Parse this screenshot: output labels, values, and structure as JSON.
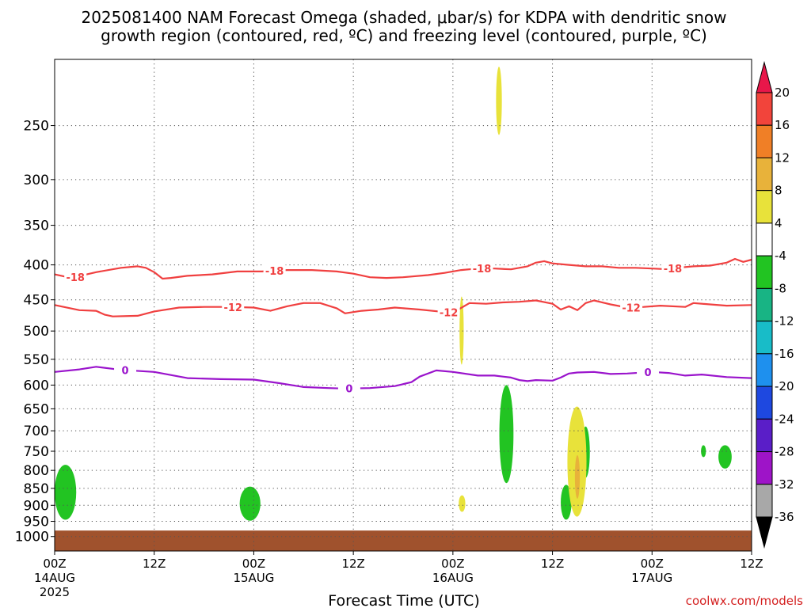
{
  "chart_data": {
    "type": "heatmap",
    "title_line1": "2025081400 NAM Forecast Omega (shaded, μbar/s) for KDPA with dendritic snow",
    "title_line2": "growth region (contoured, red, ºC) and freezing level (contoured, purple, ºC)",
    "xlabel": "Forecast Time (UTC)",
    "watermark": "coolwx.com/models",
    "x_ticks": [
      {
        "hour": 0,
        "label": "00Z",
        "date": "14AUG",
        "year": "2025"
      },
      {
        "hour": 12,
        "label": "12Z"
      },
      {
        "hour": 24,
        "label": "00Z",
        "date": "15AUG"
      },
      {
        "hour": 36,
        "label": "12Z"
      },
      {
        "hour": 48,
        "label": "00Z",
        "date": "16AUG"
      },
      {
        "hour": 60,
        "label": "12Z"
      },
      {
        "hour": 72,
        "label": "00Z",
        "date": "17AUG"
      },
      {
        "hour": 84,
        "label": "12Z"
      }
    ],
    "x_range_hours": [
      0,
      84
    ],
    "y_range_hpa": [
      1050,
      200
    ],
    "y_scale": "log-pressure (inverted)",
    "y_ticks": [
      250,
      300,
      350,
      400,
      450,
      500,
      550,
      600,
      650,
      700,
      750,
      800,
      850,
      900,
      950,
      1000
    ],
    "grid": "dotted",
    "colorbar": {
      "labels": [
        "20",
        "16",
        "12",
        "8",
        "4",
        "-4",
        "-8",
        "-12",
        "-16",
        "-20",
        "-24",
        "-28",
        "-32",
        "-36"
      ],
      "colors": [
        "#e8174a",
        "#f2443b",
        "#f07f26",
        "#e8b23a",
        "#e8e23a",
        "#ffffff",
        "#22c422",
        "#18b484",
        "#18bcc8",
        "#1e90ee",
        "#1e48e0",
        "#5a1ec8",
        "#9e14c8",
        "#a8a8a8",
        "#000000"
      ]
    },
    "series": [
      {
        "name": "-18",
        "color": "#f04040",
        "label_hours": [
          2.5,
          26.5,
          51.5,
          74.5
        ],
        "points": [
          [
            0,
            413
          ],
          [
            2,
            418
          ],
          [
            5,
            410
          ],
          [
            8,
            404
          ],
          [
            10,
            402
          ],
          [
            11,
            404
          ],
          [
            12,
            410
          ],
          [
            13,
            419
          ],
          [
            14,
            418
          ],
          [
            16,
            415
          ],
          [
            19,
            413
          ],
          [
            22,
            409
          ],
          [
            25,
            409
          ],
          [
            28,
            407
          ],
          [
            31,
            407
          ],
          [
            34,
            409
          ],
          [
            36,
            412
          ],
          [
            38,
            417
          ],
          [
            40,
            418
          ],
          [
            42,
            417
          ],
          [
            45,
            414
          ],
          [
            47,
            411
          ],
          [
            49,
            407
          ],
          [
            51,
            405
          ],
          [
            53,
            405
          ],
          [
            55,
            406
          ],
          [
            57,
            402
          ],
          [
            58,
            397
          ],
          [
            59,
            395
          ],
          [
            60,
            398
          ],
          [
            62,
            400
          ],
          [
            64,
            402
          ],
          [
            66,
            402
          ],
          [
            68,
            404
          ],
          [
            70,
            404
          ],
          [
            72,
            405
          ],
          [
            74,
            406
          ],
          [
            75,
            404
          ],
          [
            77,
            402
          ],
          [
            79,
            401
          ],
          [
            81,
            397
          ],
          [
            82,
            392
          ],
          [
            83,
            396
          ],
          [
            84,
            393
          ]
        ]
      },
      {
        "name": "-12",
        "color": "#f04040",
        "label_hours": [
          21.5,
          47.5,
          69.5
        ],
        "points": [
          [
            0,
            458
          ],
          [
            3,
            466
          ],
          [
            5,
            467
          ],
          [
            6,
            473
          ],
          [
            7,
            476
          ],
          [
            10,
            475
          ],
          [
            12,
            468
          ],
          [
            15,
            462
          ],
          [
            18,
            461
          ],
          [
            21,
            461
          ],
          [
            24,
            462
          ],
          [
            26,
            467
          ],
          [
            28,
            460
          ],
          [
            30,
            455
          ],
          [
            32,
            455
          ],
          [
            34,
            463
          ],
          [
            35,
            471
          ],
          [
            37,
            467
          ],
          [
            39,
            465
          ],
          [
            41,
            462
          ],
          [
            44,
            465
          ],
          [
            47,
            469
          ],
          [
            48,
            470
          ],
          [
            50,
            455
          ],
          [
            52,
            456
          ],
          [
            54,
            454
          ],
          [
            56,
            453
          ],
          [
            58,
            451
          ],
          [
            60,
            456
          ],
          [
            61,
            465
          ],
          [
            62,
            460
          ],
          [
            63,
            466
          ],
          [
            64,
            455
          ],
          [
            65,
            451
          ],
          [
            67,
            457
          ],
          [
            69,
            462
          ],
          [
            71,
            461
          ],
          [
            73,
            459
          ],
          [
            76,
            461
          ],
          [
            77,
            455
          ],
          [
            79,
            457
          ],
          [
            81,
            459
          ],
          [
            84,
            458
          ]
        ]
      },
      {
        "name": "0",
        "color": "#9a14cc",
        "label_hours": [
          8.5,
          35.5,
          71.5
        ],
        "points": [
          [
            0,
            574
          ],
          [
            3,
            569
          ],
          [
            5,
            564
          ],
          [
            8,
            570
          ],
          [
            12,
            574
          ],
          [
            16,
            586
          ],
          [
            20,
            588
          ],
          [
            24,
            589
          ],
          [
            27,
            596
          ],
          [
            30,
            604
          ],
          [
            33,
            606
          ],
          [
            35,
            607
          ],
          [
            38,
            606
          ],
          [
            41,
            602
          ],
          [
            43,
            594
          ],
          [
            44,
            583
          ],
          [
            46,
            571
          ],
          [
            48,
            574
          ],
          [
            51,
            581
          ],
          [
            53,
            581
          ],
          [
            55,
            585
          ],
          [
            56,
            590
          ],
          [
            57,
            592
          ],
          [
            58,
            590
          ],
          [
            60,
            591
          ],
          [
            61,
            585
          ],
          [
            62,
            577
          ],
          [
            63,
            575
          ],
          [
            65,
            574
          ],
          [
            67,
            578
          ],
          [
            69,
            577
          ],
          [
            72,
            574
          ],
          [
            74,
            576
          ],
          [
            76,
            581
          ],
          [
            78,
            579
          ],
          [
            81,
            584
          ],
          [
            84,
            586
          ]
        ]
      }
    ],
    "omega_areas": [
      {
        "value_class": "-4 to -8",
        "color": "#22c422",
        "hours": [
          0.0,
          2.6
        ],
        "hpa": [
          785,
          945
        ]
      },
      {
        "value_class": "-4 to -8",
        "color": "#22c422",
        "hours": [
          22.3,
          24.8
        ],
        "hpa": [
          845,
          948
        ]
      },
      {
        "value_class": "-4 to -8",
        "color": "#22c422",
        "hours": [
          53.6,
          55.3
        ],
        "hpa": [
          600,
          835
        ]
      },
      {
        "value_class": "-4 to -8",
        "color": "#22c422",
        "hours": [
          61.0,
          62.3
        ],
        "hpa": [
          840,
          945
        ]
      },
      {
        "value_class": "-4 to -8",
        "color": "#22c422",
        "hours": [
          63.5,
          64.5
        ],
        "hpa": [
          690,
          820
        ]
      },
      {
        "value_class": "-4 to -8",
        "color": "#22c422",
        "hours": [
          80.0,
          81.6
        ],
        "hpa": [
          735,
          795
        ]
      },
      {
        "value_class": "-4 to -8",
        "color": "#22c422",
        "hours": [
          77.9,
          78.5
        ],
        "hpa": [
          735,
          765
        ]
      },
      {
        "value_class": "4 to 8",
        "color": "#e8e23a",
        "hours": [
          61.8,
          64.1
        ],
        "hpa": [
          645,
          935
        ]
      },
      {
        "value_class": "4 to 8",
        "color": "#e8e23a",
        "hours": [
          48.8,
          49.3
        ],
        "hpa": [
          445,
          560
        ]
      },
      {
        "value_class": "4 to 8",
        "color": "#e8e23a",
        "hours": [
          53.2,
          53.9
        ],
        "hpa": [
          205,
          258
        ]
      },
      {
        "value_class": "4 to 8",
        "color": "#e8e23a",
        "hours": [
          48.7,
          49.5
        ],
        "hpa": [
          870,
          920
        ]
      },
      {
        "value_class": "8 to 12",
        "color": "#e8b23a",
        "hours": [
          62.7,
          63.3
        ],
        "hpa": [
          760,
          880
        ]
      }
    ],
    "surface_fill": {
      "color": "#a0522d",
      "hpa_top": 980
    }
  }
}
